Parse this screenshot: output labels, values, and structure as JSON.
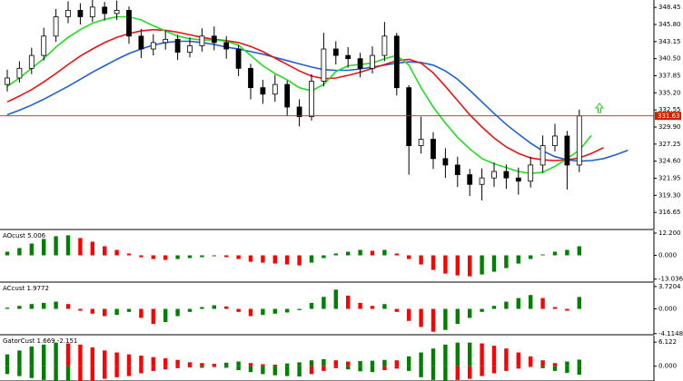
{
  "chart_data": [
    {
      "type": "candlestick",
      "open": [
        336.5,
        337.5,
        339,
        341,
        344,
        347,
        348,
        347,
        348.5,
        347.5,
        348,
        344,
        342,
        343,
        343.5,
        341.5,
        342.5,
        344,
        343,
        342,
        339,
        336,
        335,
        336.5,
        333,
        331.5,
        337,
        342,
        341,
        340.5,
        339,
        341,
        344,
        336,
        327,
        328,
        325,
        324,
        322.5,
        321,
        322,
        323,
        322,
        321.5,
        324,
        327,
        328.5,
        324,
        null,
        null,
        null,
        null
      ],
      "high": [
        338.8,
        340.1,
        342.2,
        345.3,
        348.2,
        349.4,
        349.1,
        349.6,
        349.3,
        349.5,
        348.6,
        345.1,
        344.3,
        344.9,
        344.2,
        343.8,
        345.2,
        345.5,
        344,
        342.6,
        339.7,
        337.2,
        338,
        337.1,
        334.2,
        338.1,
        344.5,
        343.2,
        342.3,
        341.4,
        342.4,
        346.2,
        344.5,
        336.4,
        331.5,
        329.1,
        326.6,
        325.3,
        323.4,
        323.5,
        324.4,
        324.1,
        323.6,
        325.3,
        328.6,
        330.4,
        329.3,
        332.6,
        null,
        null,
        null,
        null
      ],
      "low": [
        335.4,
        336.8,
        338.1,
        340.2,
        343.1,
        346,
        345.8,
        346.2,
        346.4,
        346.5,
        342.8,
        340.6,
        341,
        341.9,
        340.3,
        340.7,
        341.6,
        341.8,
        340.5,
        337.8,
        334.2,
        333.5,
        333.8,
        331.6,
        330,
        330.9,
        336.2,
        339.6,
        339.1,
        337.6,
        338.2,
        340.1,
        334.8,
        322.5,
        325.8,
        323.4,
        322,
        320.6,
        319.2,
        318.5,
        320.6,
        320.3,
        319.4,
        320.5,
        322.8,
        326.1,
        320.2,
        322.9,
        null,
        null,
        null,
        null
      ],
      "close": [
        337.5,
        339,
        341,
        344,
        347,
        348,
        347,
        348.5,
        347.5,
        348,
        344,
        342,
        343,
        343.5,
        341.5,
        342.5,
        344,
        343,
        342,
        339,
        336,
        335,
        336.5,
        333,
        331.5,
        337,
        342,
        341,
        340.5,
        339,
        341,
        344,
        336,
        327,
        328,
        325,
        324,
        322.5,
        321,
        322,
        323,
        322,
        321.5,
        324,
        327,
        328.5,
        324,
        331.63,
        null,
        null,
        null,
        null
      ],
      "series": [
        {
          "color": "#1f5fd6",
          "values": [
            331.8,
            332.5,
            333.3,
            334.2,
            335.2,
            336.2,
            337.3,
            338.4,
            339.4,
            340.4,
            341.3,
            342,
            342.6,
            343,
            343.2,
            343.2,
            343,
            342.7,
            342.3,
            342,
            341.6,
            341.2,
            340.7,
            340.2,
            339.7,
            339.2,
            338.8,
            338.7,
            338.7,
            338.9,
            339.2,
            339.5,
            339.8,
            340,
            339.9,
            339.5,
            338.6,
            337.3,
            335.6,
            333.8,
            332,
            330.3,
            328.8,
            327.4,
            326.2,
            325.3,
            324.8,
            324.6,
            324.7,
            325,
            325.6,
            326.3
          ]
        },
        {
          "color": "#ee1111",
          "values": [
            333.8,
            334.7,
            335.7,
            336.9,
            338.2,
            339.6,
            340.9,
            342,
            343,
            343.8,
            344.4,
            344.8,
            345,
            344.9,
            344.6,
            344.2,
            343.8,
            343.5,
            343.3,
            343,
            342.4,
            341.6,
            340.6,
            339.6,
            338.6,
            337.8,
            337.4,
            337.5,
            337.9,
            338.4,
            339,
            339.6,
            340.2,
            340.4,
            339.8,
            338.3,
            336.2,
            334,
            331.8,
            329.9,
            328.2,
            326.8,
            325.8,
            325.1,
            324.8,
            324.7,
            324.8,
            325.1,
            325.8,
            326.7,
            null,
            null
          ]
        },
        {
          "color": "#22dd22",
          "values": [
            336.2,
            337.5,
            339,
            340.5,
            342.3,
            343.8,
            345,
            346,
            346.6,
            347,
            347,
            346.5,
            345.6,
            344.8,
            344,
            343.6,
            343.4,
            343.4,
            343.2,
            342.6,
            341,
            339.4,
            338.2,
            337.2,
            336,
            335.5,
            336.5,
            338.5,
            339.4,
            339.6,
            339.8,
            340.5,
            341,
            339.5,
            336,
            333,
            330.5,
            328.3,
            326.5,
            325,
            324.2,
            323.6,
            323,
            322.7,
            322.9,
            323.8,
            325,
            326.3,
            328.6,
            null,
            null,
            null
          ]
        }
      ],
      "last_price": 331.63,
      "last_price_color": "#cc2200",
      "ylim": [
        314,
        349.6
      ],
      "yticks": [
        348.45,
        {
          "value": 345.8,
          "label": "345.80"
        },
        343.15,
        {
          "value": 340.5,
          "label": "340.50"
        },
        337.85,
        {
          "value": 335.2,
          "label": "335.20"
        },
        332.55,
        {
          "value": 329.9,
          "label": "329.90"
        },
        327.25,
        {
          "value": 324.6,
          "label": "324.60"
        },
        321.95,
        {
          "value": 319.3,
          "label": "319.30"
        },
        316.65
      ]
    },
    {
      "type": "histogram",
      "title": "AOcust 5.006",
      "up_color": "#008000",
      "down_color": "#ff0000",
      "series": [
        {
          "values": [
            2,
            4,
            6.5,
            9,
            10.5,
            11,
            9.5,
            7.5,
            5,
            3,
            1,
            -1,
            -2,
            -2.5,
            -2,
            -1.5,
            -1,
            -0.5,
            -1,
            -2,
            -3.5,
            -4,
            -4.5,
            -5,
            -5.5,
            -4,
            -1.5,
            1,
            2,
            3,
            2.5,
            3,
            1,
            -2,
            -5,
            -8,
            -10,
            -11,
            -11.5,
            -10.5,
            -9,
            -7,
            -4.5,
            -2,
            0.5,
            2,
            3,
            5.006
          ]
        }
      ],
      "ylim": [
        -14.7,
        13.7
      ],
      "yticks": [
        {
          "value": 12.2,
          "label": "12.200"
        },
        {
          "value": 0,
          "label": "0.000"
        },
        -13.036
      ]
    },
    {
      "type": "histogram",
      "title": "ACcust 1.9772",
      "up_color": "#008000",
      "down_color": "#ff0000",
      "series": [
        {
          "values": [
            0.2,
            0.5,
            0.8,
            1,
            1.2,
            0.8,
            -0.3,
            -0.8,
            -1.2,
            -1,
            -0.5,
            -1.5,
            -2.5,
            -2.2,
            -1.2,
            -0.5,
            0.3,
            0.6,
            0.4,
            -0.5,
            -1.2,
            -1,
            -0.8,
            -0.6,
            -0.2,
            1,
            2,
            3.2,
            2.2,
            1,
            0.5,
            0.8,
            -0.5,
            -2,
            -3,
            -3.8,
            -3.5,
            -2.5,
            -1.5,
            -0.5,
            0.5,
            1.2,
            1.8,
            2.3,
            1.8,
            0.3,
            -0.3,
            1.9772
          ]
        }
      ],
      "ylim": [
        -4.3,
        4.3
      ],
      "yticks": [
        3.7204,
        {
          "value": 0,
          "label": "0.000"
        },
        -4.1148
      ]
    },
    {
      "type": "histogram",
      "title": "GatorCust 1.669 -2.151",
      "up_color": "#008000",
      "down_color": "#ff0000",
      "series": [
        {
          "values": [
            3,
            4,
            5,
            5.5,
            6,
            5.8,
            5.5,
            4.8,
            4,
            3.5,
            3,
            2.7,
            2.3,
            2,
            1.6,
            1,
            0.8,
            0.6,
            0.9,
            1.2,
            0.8,
            0.5,
            0.4,
            0.7,
            1,
            1.5,
            1.8,
            1.5,
            1.2,
            1.3,
            1.4,
            1.6,
            1.5,
            2.5,
            3.5,
            4.5,
            5.5,
            6,
            6,
            5.8,
            5.2,
            4.5,
            3.5,
            2.5,
            1.5,
            0.8,
            1.2,
            1.669
          ]
        },
        {
          "values": [
            -2,
            -2.5,
            -3,
            -3.5,
            -4,
            -4.2,
            -4,
            -3.8,
            -3.2,
            -2.8,
            -2.5,
            -1.8,
            -1.2,
            -0.8,
            -0.5,
            -0.3,
            -0.4,
            -0.2,
            -0.4,
            -1,
            -1.5,
            -2,
            -2.3,
            -2.5,
            -2.6,
            -2,
            -1.2,
            -0.5,
            -0.8,
            -1.3,
            -1.5,
            -1,
            -0.6,
            -1.2,
            -2.8,
            -3.5,
            -3.8,
            -3.5,
            -3.2,
            -2.5,
            -1.8,
            -1.2,
            -0.6,
            -0.2,
            -0.5,
            -1.2,
            -1.7,
            -2.151
          ]
        }
      ],
      "ylim": [
        -3.76,
        7.77
      ],
      "yticks": [
        6.122,
        {
          "value": 0,
          "label": "0.000"
        }
      ]
    }
  ]
}
